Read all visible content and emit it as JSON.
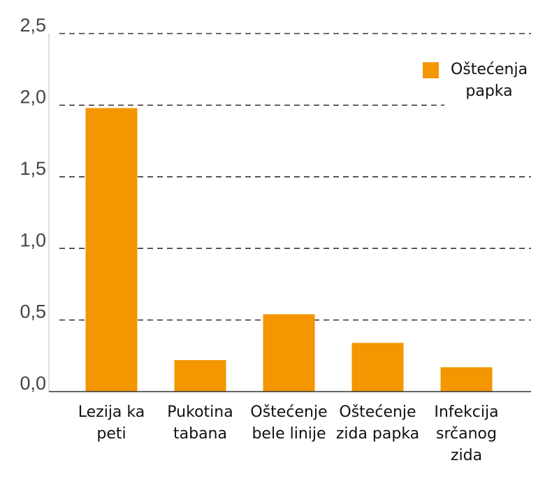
{
  "chart_data": {
    "type": "bar",
    "categories": [
      "Lezija ka peti",
      "Pukotina tabana",
      "Oštećenje bele linije",
      "Oštećenje zida papka",
      "Infekcija srčanog zida"
    ],
    "series": [
      {
        "name": "Oštećenja papka",
        "color": "#f39600",
        "values": [
          1.98,
          0.22,
          0.54,
          0.34,
          0.17
        ]
      }
    ],
    "ylim": [
      0,
      2.5
    ],
    "yticks": [
      {
        "value": 0,
        "label": "0,0"
      },
      {
        "value": 0.5,
        "label": "0,5"
      },
      {
        "value": 1,
        "label": "1,0"
      },
      {
        "value": 1.5,
        "label": "1,5"
      },
      {
        "value": 2,
        "label": "2,0"
      },
      {
        "value": 2.5,
        "label": "2,5"
      }
    ],
    "grid": true,
    "legend": "top-right"
  }
}
